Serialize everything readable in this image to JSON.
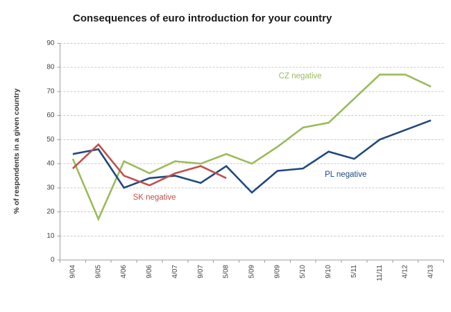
{
  "title": "Consequences of euro introduction for your country",
  "y_axis_title": "% of respondents in a given country",
  "chart_data": {
    "type": "line",
    "title": "Consequences of euro introduction for your country",
    "ylabel": "% of respondents in a given country",
    "xlabel": "",
    "ylim": [
      0,
      90
    ],
    "y_ticks": [
      0,
      10,
      20,
      30,
      40,
      50,
      60,
      70,
      80,
      90
    ],
    "grid": "horizontal dashed",
    "legend_position": "inline-labels",
    "categories": [
      "9/04",
      "9/05",
      "4/06",
      "9/06",
      "4/07",
      "9/07",
      "5/08",
      "5/09",
      "9/09",
      "5/10",
      "9/10",
      "5/11",
      "11/11",
      "4/12",
      "4/13"
    ],
    "series": [
      {
        "name": "CZ negative",
        "color": "#9BBB59",
        "values": [
          42,
          17,
          41,
          36,
          41,
          40,
          44,
          40,
          47,
          55,
          57,
          67,
          77,
          77,
          72
        ]
      },
      {
        "name": "PL negative",
        "color": "#1F497D",
        "values": [
          44,
          46,
          30,
          34,
          35,
          32,
          39,
          28,
          37,
          38,
          45,
          42,
          50,
          54,
          58
        ]
      },
      {
        "name": "SK negative",
        "color": "#C0504D",
        "values": [
          38,
          48,
          35,
          31,
          36,
          39,
          34,
          null,
          null,
          null,
          null,
          null,
          null,
          null,
          null
        ]
      }
    ],
    "annotations": [
      {
        "text": "CZ negative",
        "color": "#9BBB59",
        "x": 8.05,
        "y": 75.5
      },
      {
        "text": "PL negative",
        "color": "#1F497D",
        "x": 9.85,
        "y": 34.5
      },
      {
        "text": "SK negative",
        "color": "#C0504D",
        "x": 2.35,
        "y": 25.0
      }
    ]
  }
}
